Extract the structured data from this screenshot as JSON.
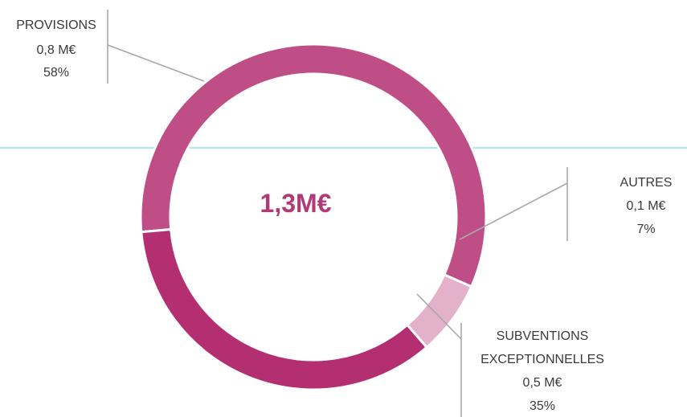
{
  "chart_data": {
    "type": "pie",
    "variant": "donut",
    "center_label": "1,3M€",
    "slices": [
      {
        "name": "PROVISIONS",
        "amount_label": "0,8 M€",
        "percent_label": "58%",
        "value": 58,
        "color": "#c04e86"
      },
      {
        "name": "AUTRES",
        "amount_label": "0,1 M€",
        "percent_label": "7%",
        "value": 7,
        "color": "#e3b1ca"
      },
      {
        "name": "SUBVENTIONS EXCEPTIONNELLES",
        "name_lines": [
          "SUBVENTIONS",
          "EXCEPTIONNELLES"
        ],
        "amount_label": "0,5 M€",
        "percent_label": "35%",
        "value": 35,
        "color": "#b42f72"
      }
    ],
    "start_angle_deg": 265,
    "direction": "clockwise"
  },
  "colors": {
    "center_text": "#b03a76",
    "leader_line": "#a8a8a8",
    "guide_line": "#8fe0e8",
    "slice_separator": "#ffffff"
  }
}
